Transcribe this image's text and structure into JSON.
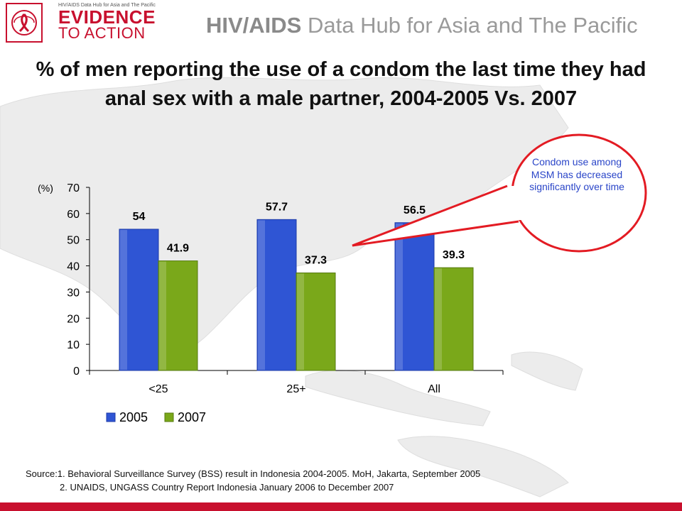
{
  "header": {
    "logo_small": "HIV/AIDS Data Hub for Asia and The Pacific",
    "logo_line1": "EVIDENCE",
    "logo_line2": "TO ACTION",
    "hub_title_bold": "HIV/AIDS",
    "hub_title_rest": "Data Hub for Asia and The Pacific"
  },
  "callout": {
    "text": "Condom use among MSM has decreased significantly over time"
  },
  "source": {
    "line1": "Source:1. Behavioral Surveillance Survey (BSS) result in Indonesia 2004-2005. MoH, Jakarta, September 2005",
    "line2": "2. UNAIDS, UNGASS Country Report Indonesia January 2006 to December 2007"
  },
  "colors": {
    "brand_red": "#c8102e",
    "series_2005": "#2f55d4",
    "series_2007": "#7aa81a",
    "callout_text": "#2a45c8"
  },
  "chart_data": {
    "type": "bar",
    "title": "% of men reporting the use of a condom the last time they had anal sex with a male partner, 2004-2005 Vs. 2007",
    "ylabel": "(%)",
    "xlabel": "",
    "ylim": [
      0,
      70
    ],
    "yticks": [
      0,
      10,
      20,
      30,
      40,
      50,
      60,
      70
    ],
    "categories": [
      "<25",
      "25+",
      "All"
    ],
    "series": [
      {
        "name": "2005",
        "values": [
          54,
          57.7,
          56.5
        ],
        "labels": [
          "54",
          "57.7",
          "56.5"
        ]
      },
      {
        "name": "2007",
        "values": [
          41.9,
          37.3,
          39.3
        ],
        "labels": [
          "41.9",
          "37.3",
          "39.3"
        ]
      }
    ],
    "legend_position": "bottom-left",
    "grid": false
  }
}
